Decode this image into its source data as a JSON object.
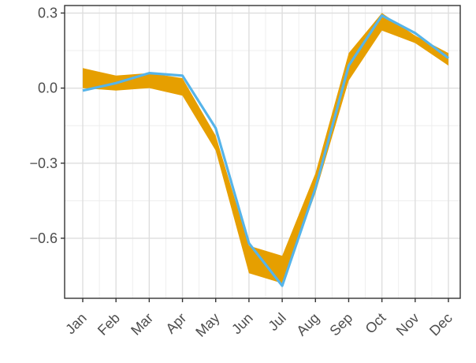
{
  "chart_data": {
    "type": "area",
    "title": "",
    "xlabel": "",
    "ylabel": "",
    "categories": [
      "Jan",
      "Feb",
      "Mar",
      "Apr",
      "May",
      "Jun",
      "Jul",
      "Aug",
      "Sep",
      "Oct",
      "Nov",
      "Dec"
    ],
    "ylim": [
      -0.84,
      0.33
    ],
    "y_ticks": [
      0.3,
      0.0,
      -0.3,
      -0.6
    ],
    "y_tick_labels": [
      "0.3",
      "0.0",
      "−0.3",
      "−0.6"
    ],
    "grid": true,
    "legend": "none",
    "band": {
      "upper": [
        0.08,
        0.05,
        0.06,
        0.04,
        -0.19,
        -0.63,
        -0.67,
        -0.34,
        0.14,
        0.3,
        0.21,
        0.14
      ],
      "lower": [
        0.0,
        -0.01,
        0.0,
        -0.03,
        -0.25,
        -0.74,
        -0.78,
        -0.42,
        0.03,
        0.23,
        0.18,
        0.09
      ],
      "color": "#E69F00"
    },
    "series": [
      {
        "values": [
          -0.01,
          0.02,
          0.06,
          0.05,
          -0.16,
          -0.62,
          -0.79,
          -0.4,
          0.09,
          0.29,
          0.22,
          0.12
        ],
        "color": "#56B4E9"
      }
    ]
  }
}
